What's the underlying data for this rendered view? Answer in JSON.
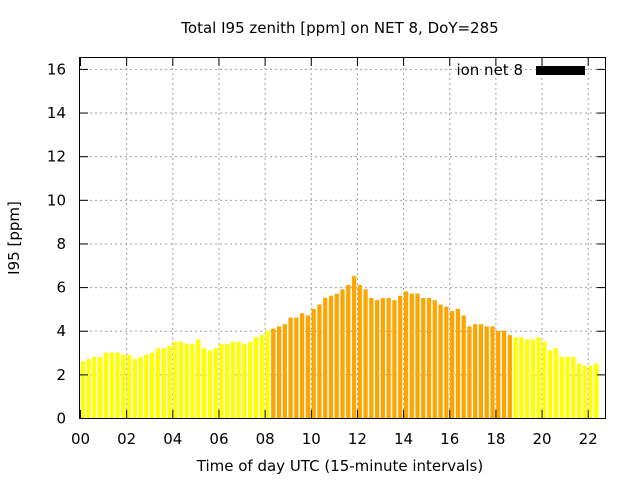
{
  "chart_data": {
    "type": "bar",
    "title": "Total I95 zenith [ppm] on NET 8, DoY=285",
    "xlabel": "Time of day UTC (15-minute intervals)",
    "ylabel": "I95 [ppm]",
    "xlim": [
      0,
      22.75
    ],
    "ylim": [
      0,
      16.5
    ],
    "x_ticks": [
      "00",
      "02",
      "04",
      "06",
      "08",
      "10",
      "12",
      "14",
      "16",
      "18",
      "20",
      "22"
    ],
    "y_ticks": [
      "0",
      "2",
      "4",
      "6",
      "8",
      "10",
      "12",
      "14",
      "16"
    ],
    "grid": true,
    "legend_position": "top-right",
    "series": [
      {
        "name": "ion net 8",
        "legend_color": "#000000",
        "interval_hours": 0.25,
        "x_start": 0.125,
        "values": [
          2.6,
          2.7,
          2.8,
          2.8,
          3.0,
          3.0,
          3.0,
          2.9,
          2.9,
          2.7,
          2.8,
          2.9,
          3.0,
          3.2,
          3.2,
          3.3,
          3.5,
          3.5,
          3.4,
          3.4,
          3.6,
          3.2,
          3.1,
          3.2,
          3.4,
          3.4,
          3.5,
          3.5,
          3.4,
          3.5,
          3.7,
          3.8,
          4.0,
          4.1,
          4.2,
          4.3,
          4.6,
          4.6,
          4.8,
          4.7,
          5.0,
          5.2,
          5.5,
          5.6,
          5.7,
          5.9,
          6.1,
          6.5,
          6.1,
          5.9,
          5.5,
          5.4,
          5.5,
          5.5,
          5.4,
          5.6,
          5.8,
          5.7,
          5.7,
          5.5,
          5.5,
          5.4,
          5.2,
          5.1,
          4.9,
          5.0,
          4.7,
          4.2,
          4.3,
          4.3,
          4.2,
          4.2,
          4.0,
          4.0,
          3.8,
          3.7,
          3.7,
          3.6,
          3.6,
          3.7,
          3.5,
          3.1,
          3.2,
          2.8,
          2.8,
          2.8,
          2.5,
          2.4,
          2.4,
          2.5
        ],
        "bar_colors": [
          "#ffff00",
          "#ffa500"
        ],
        "highlight_range": [
          8.25,
          18.75
        ]
      }
    ]
  }
}
